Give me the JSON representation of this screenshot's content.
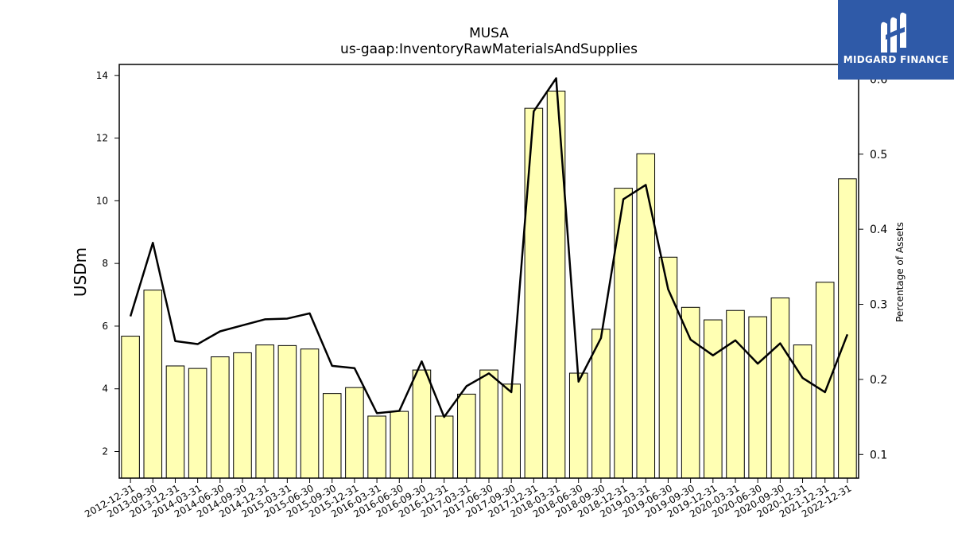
{
  "header": {
    "logo_text": "MIDGARD FINANCE"
  },
  "chart_data": {
    "type": "bar",
    "title": "MUSA",
    "subtitle": "us-gaap:InventoryRawMaterialsAndSupplies",
    "ylabel": "USDm",
    "y2label": "Percentage of Assets",
    "categories": [
      "2012-12-31",
      "2013-09-30",
      "2013-12-31",
      "2014-03-31",
      "2014-06-30",
      "2014-09-30",
      "2014-12-31",
      "2015-03-31",
      "2015-06-30",
      "2015-09-30",
      "2015-12-31",
      "2016-03-31",
      "2016-06-30",
      "2016-09-30",
      "2016-12-31",
      "2017-03-31",
      "2017-06-30",
      "2017-09-30",
      "2017-12-31",
      "2018-03-31",
      "2018-06-30",
      "2018-09-30",
      "2018-12-31",
      "2019-03-31",
      "2019-06-30",
      "2019-09-30",
      "2019-12-31",
      "2020-03-31",
      "2020-06-30",
      "2020-09-30",
      "2020-12-31",
      "2021-12-31",
      "2022-12-31"
    ],
    "series": [
      {
        "name": "USDm",
        "kind": "bar",
        "axis": "left",
        "color": "#ffffb3",
        "values": [
          5.68,
          7.15,
          4.73,
          4.65,
          5.02,
          5.15,
          5.4,
          5.38,
          5.27,
          3.85,
          4.04,
          3.13,
          3.28,
          4.6,
          3.13,
          3.83,
          4.6,
          4.15,
          12.95,
          13.5,
          4.5,
          5.9,
          10.4,
          11.5,
          8.2,
          6.6,
          6.2,
          6.5,
          6.3,
          6.9,
          5.4,
          7.4,
          10.7
        ]
      },
      {
        "name": "Percentage of Assets",
        "kind": "line",
        "axis": "right",
        "color": "#000000",
        "values": [
          0.284,
          0.382,
          0.251,
          0.247,
          0.264,
          0.272,
          0.28,
          0.281,
          0.288,
          0.218,
          0.215,
          0.155,
          0.158,
          0.224,
          0.15,
          0.191,
          0.208,
          0.183,
          0.557,
          0.601,
          0.197,
          0.255,
          0.44,
          0.459,
          0.32,
          0.253,
          0.232,
          0.252,
          0.221,
          0.248,
          0.202,
          0.183,
          0.26
        ]
      }
    ],
    "ylim": [
      1.15,
      14.35
    ],
    "yticks": [
      2,
      4,
      6,
      8,
      10,
      12,
      14
    ],
    "y2lim": [
      0.0685,
      0.6195
    ],
    "y2ticks": [
      0.1,
      0.2,
      0.3,
      0.4,
      0.5,
      0.6
    ],
    "grid": false
  }
}
